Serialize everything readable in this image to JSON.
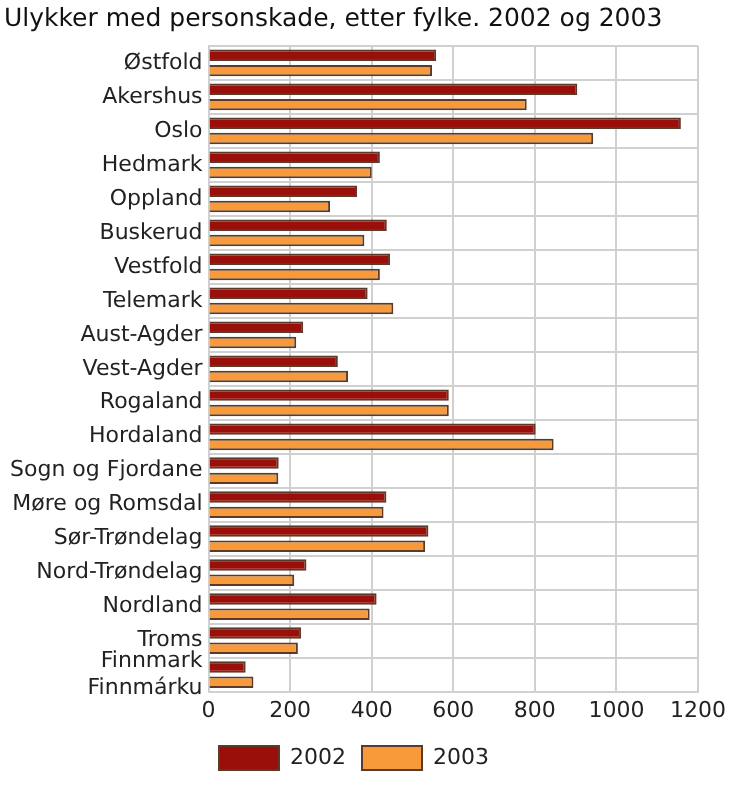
{
  "chart_data": {
    "type": "bar",
    "orientation": "horizontal",
    "title": "Ulykker med personskade, etter fylke. 2002 og 2003",
    "categories": [
      "Østfold",
      "Akershus",
      "Oslo",
      "Hedmark",
      "Oppland",
      "Buskerud",
      "Vestfold",
      "Telemark",
      "Aust-Agder",
      "Vest-Agder",
      "Rogaland",
      "Hordaland",
      "Sogn og Fjordane",
      "Møre og Romsdal",
      "Sør-Trøndelag",
      "Nord-Trøndelag",
      "Nordland",
      "Troms",
      "Finnmark\nFinnmárku"
    ],
    "series": [
      {
        "name": "2002",
        "color": "#9b0f0a",
        "values": [
          558,
          904,
          1158,
          420,
          364,
          437,
          445,
          390,
          232,
          317,
          589,
          802,
          172,
          436,
          539,
          240,
          412,
          227,
          91
        ]
      },
      {
        "name": "2003",
        "color": "#f89a3a",
        "values": [
          548,
          780,
          943,
          400,
          298,
          382,
          420,
          453,
          215,
          342,
          589,
          846,
          171,
          429,
          531,
          210,
          395,
          219,
          110
        ]
      }
    ],
    "xlim": [
      0,
      1200
    ],
    "xticks": [
      0,
      200,
      400,
      600,
      800,
      1000,
      1200
    ],
    "grid": true,
    "legend": "bottom"
  }
}
